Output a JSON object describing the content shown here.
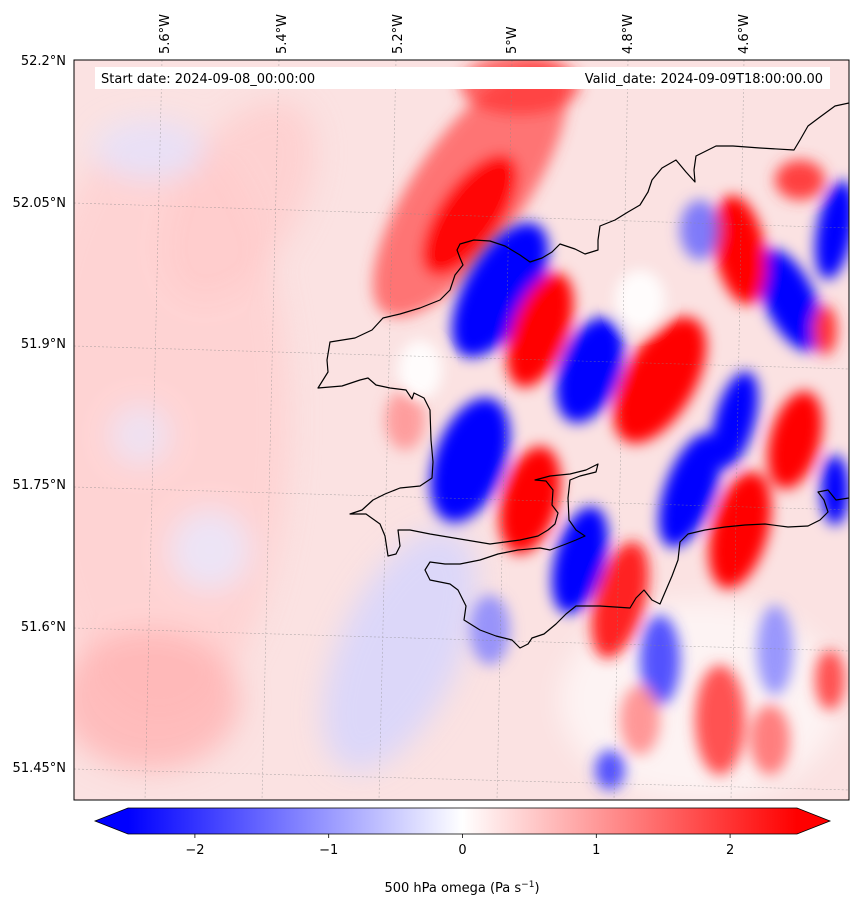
{
  "map": {
    "start_date": "Start date: 2024-09-08_00:00:00",
    "valid_date": "Valid_date: 2024-09-09T18:00:00.00",
    "lon_labels": [
      "5.6°W",
      "5.4°W",
      "5.2°W",
      "5°W",
      "4.8°W",
      "4.6°W"
    ],
    "lat_labels": [
      "52.2°N",
      "52.05°N",
      "51.9°N",
      "51.75°N",
      "51.6°N",
      "51.45°N"
    ],
    "colors": {
      "negative": "#0000ff",
      "neutral": "#ffffff",
      "positive": "#ff0000",
      "coast": "#000000"
    }
  },
  "colorbar": {
    "label_text": "500 hPa omega (Pa s",
    "label_exponent": "−1",
    "label_close": ")",
    "range": [
      -2.5,
      2.5
    ],
    "ticks": [
      {
        "value": -2,
        "label": "−2"
      },
      {
        "value": -1,
        "label": "−1"
      },
      {
        "value": 0,
        "label": "0"
      },
      {
        "value": 1,
        "label": "1"
      },
      {
        "value": 2,
        "label": "2"
      }
    ]
  }
}
